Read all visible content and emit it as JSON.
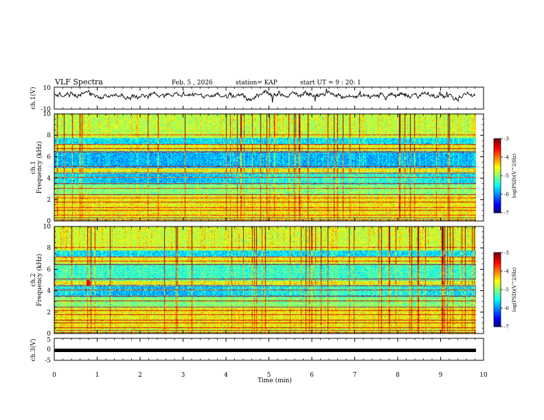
{
  "header": {
    "title": "VLF Spectra",
    "date": "Feb. 5 , 2026",
    "station": "station= KAP",
    "start": "start UT =  9 : 20: 1"
  },
  "chart_data": [
    {
      "type": "line",
      "panel": "ch1-waveform",
      "ylabel": "ch.1(V)",
      "ylim": [
        -10,
        10
      ],
      "yticks": [
        "10",
        "-10"
      ],
      "xlim": [
        0,
        10
      ],
      "description_series": "noisy waveform centered near 2.5 V"
    },
    {
      "type": "heatmap",
      "panel": "ch1-spectrogram",
      "ylabel": "ch.1 Frequency (kHz)",
      "ylim": [
        0,
        10
      ],
      "yticks": [
        "0",
        "2",
        "4",
        "6",
        "8",
        "10"
      ],
      "xlim": [
        0,
        10
      ],
      "colorbar": {
        "label": "log(PSD)(V^2/Hz)",
        "range": [
          -7,
          -3
        ],
        "ticks": [
          "-3",
          "-4",
          "-5",
          "-6",
          "-7"
        ]
      }
    },
    {
      "type": "heatmap",
      "panel": "ch2-spectrogram",
      "ylabel": "ch.2 Frequency (kHz)",
      "ylim": [
        0,
        10
      ],
      "yticks": [
        "0",
        "2",
        "4",
        "6",
        "8",
        "10"
      ],
      "xlim": [
        0,
        10
      ],
      "colorbar": {
        "label": "log(PSD)(V^2/Hz)",
        "range": [
          -7,
          -3
        ],
        "ticks": [
          "-3",
          "-4",
          "-5",
          "-6",
          "-7"
        ]
      }
    },
    {
      "type": "line",
      "panel": "ch3-waveform",
      "ylabel": "ch.3(V)",
      "ylim": [
        -5,
        5
      ],
      "yticks": [
        "5",
        "0",
        "-5"
      ],
      "xlim": [
        0,
        10
      ],
      "constant_value": 0
    }
  ],
  "xaxis": {
    "label": "Time (min)",
    "ticks": [
      "0",
      "1",
      "2",
      "3",
      "4",
      "5",
      "6",
      "7",
      "8",
      "9",
      "10"
    ],
    "range": [
      0,
      10
    ],
    "data_end": 9.8
  },
  "colors": {
    "scale": [
      "#000080",
      "#0000ff",
      "#0080ff",
      "#00ffff",
      "#00ff80",
      "#80ff00",
      "#ffff00",
      "#ff8000",
      "#ff0000",
      "#ffffff"
    ]
  }
}
